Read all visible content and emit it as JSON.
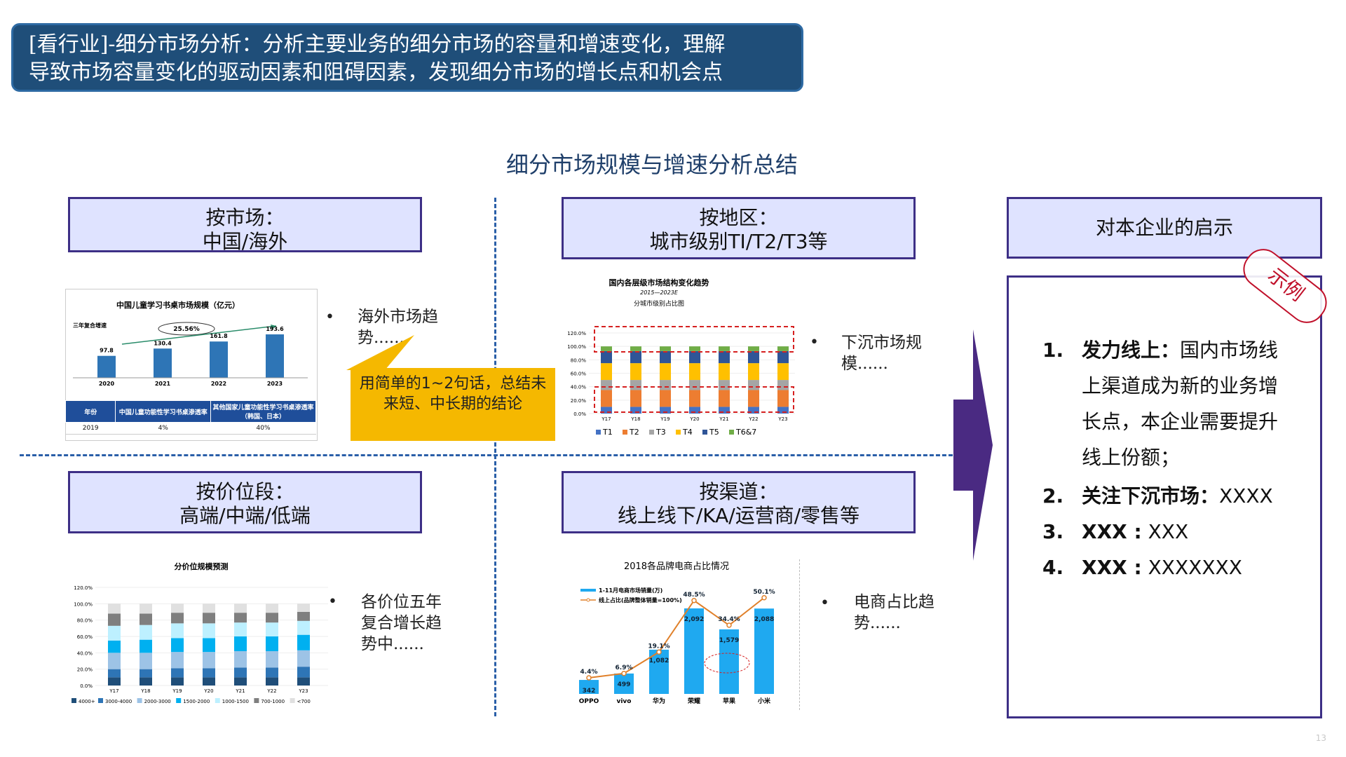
{
  "banner": {
    "line1": "[看行业]-细分市场分析：分析主要业务的细分市场的容量和增速变化，理解",
    "line2": "导致市场容量变化的驱动因素和阻碍因素，发现细分市场的增长点和机会点"
  },
  "main_title": "细分市场规模与增速分析总结",
  "dimensions": {
    "market": {
      "line1": "按市场：",
      "line2": "中国/海外"
    },
    "region": {
      "line1": "按地区：",
      "line2": "城市级别TI/T2/T3等"
    },
    "price": {
      "line1": "按价位段：",
      "line2": "高端/中端/低端"
    },
    "channel": {
      "line1": "按渠道：",
      "line2": "线上线下/KA/运营商/零售等"
    }
  },
  "notes": {
    "market": "海外市场趋势......",
    "region": "下沉市场规模......",
    "price": "各价位五年复合增长趋势中......",
    "channel": "电商占比趋势......",
    "bullet": "•"
  },
  "callout": "用简单的1~2句话，总结未来短、中长期的结论",
  "insights": {
    "header": "对本企业的启示",
    "stamp": "示例",
    "items": [
      {
        "num": "1.",
        "bold": "发力线上：",
        "text": "国内市场线上渠道成为新的业务增长点，本企业需要提升线上份额；"
      },
      {
        "num": "2.",
        "bold": "关注下沉市场：",
        "text": "XXXX"
      },
      {
        "num": "3.",
        "bold": "XXX :",
        "text": " XXX"
      },
      {
        "num": "4.",
        "bold": "XXX :",
        "text": " XXXXXXX"
      }
    ]
  },
  "page_number": "13",
  "chart_data": [
    {
      "type": "bar",
      "title": "中国儿童学习书桌市场规模（亿元）",
      "categories": [
        "2020",
        "2021",
        "2022",
        "2023"
      ],
      "values": [
        97.8,
        130.4,
        161.8,
        193.6
      ],
      "annotation_label": "三年复合增速",
      "annotation_value": "25.56%",
      "table": {
        "headers": [
          "年份",
          "中国儿童功能性学习书桌渗透率",
          "其他国家儿童功能性学习书桌渗透率（韩国、日本）"
        ],
        "rows": [
          [
            "2019",
            "4%",
            "40%"
          ]
        ]
      },
      "color": "#2e75b6"
    },
    {
      "type": "bar",
      "title": "国内各层级市场结构变化趋势",
      "subtitle": "2015—2023E",
      "chart_label": "分城市级别占比图",
      "categories": [
        "Y17",
        "Y18",
        "Y19",
        "Y20",
        "Y21",
        "Y22",
        "Y23"
      ],
      "ylabels": [
        "0.0%",
        "20.0%",
        "40.0%",
        "60.0%",
        "80.0%",
        "100.0%",
        "120.0%"
      ],
      "stacked": true,
      "series": [
        {
          "name": "T1",
          "values": [
            10,
            10,
            10,
            10,
            10,
            10,
            10
          ],
          "color": "#4472c4"
        },
        {
          "name": "T2",
          "values": [
            25,
            25,
            25,
            25,
            25,
            25,
            25
          ],
          "color": "#ed7d31"
        },
        {
          "name": "T3",
          "values": [
            15,
            15,
            15,
            15,
            15,
            15,
            15
          ],
          "color": "#a5a5a5"
        },
        {
          "name": "T4",
          "values": [
            25,
            25,
            25,
            25,
            25,
            25,
            25
          ],
          "color": "#ffc000"
        },
        {
          "name": "T5",
          "values": [
            18,
            18,
            18,
            18,
            18,
            18,
            18
          ],
          "color": "#2f5597"
        },
        {
          "name": "T6&7",
          "values": [
            7,
            7,
            7,
            7,
            7,
            7,
            7
          ],
          "color": "#70ad47"
        }
      ]
    },
    {
      "type": "bar",
      "title": "分价位规模预测",
      "categories": [
        "Y17",
        "Y18",
        "Y19",
        "Y20",
        "Y21",
        "Y22",
        "Y23"
      ],
      "ylabels": [
        "0.0%",
        "20.0%",
        "40.0%",
        "60.0%",
        "80.0%",
        "100.0%",
        "120.0%"
      ],
      "stacked": true,
      "series": [
        {
          "name": "4000+",
          "values": [
            10,
            10,
            10,
            10,
            10,
            10,
            10
          ],
          "color": "#1f4e79"
        },
        {
          "name": "3000-4000",
          "values": [
            10,
            10,
            11,
            11,
            12,
            12,
            13
          ],
          "color": "#2e75b6"
        },
        {
          "name": "2000-3000",
          "values": [
            20,
            20,
            20,
            20,
            20,
            20,
            20
          ],
          "color": "#9dc3e6"
        },
        {
          "name": "1500-2000",
          "values": [
            15,
            16,
            17,
            17,
            18,
            18,
            19
          ],
          "color": "#00b0f0"
        },
        {
          "name": "1000-1500",
          "values": [
            18,
            18,
            18,
            18,
            17,
            17,
            17
          ],
          "color": "#bdf0ff"
        },
        {
          "name": "700-1000",
          "values": [
            15,
            14,
            13,
            13,
            12,
            12,
            11
          ],
          "color": "#7f7f7f"
        },
        {
          "name": "<700",
          "values": [
            12,
            12,
            11,
            11,
            11,
            11,
            10
          ],
          "color": "#e0e0e0"
        }
      ]
    },
    {
      "type": "bar",
      "title": "2018各品牌电商占比情况",
      "categories": [
        "OPPO",
        "vivo",
        "华为",
        "荣耀",
        "苹果",
        "小米"
      ],
      "series": [
        {
          "name": "1-11月电商市场销量(万)",
          "values": [
            342,
            499,
            1082,
            2092,
            1579,
            2088
          ],
          "labels": [
            "342",
            "499",
            "1,082",
            "2,092",
            "1,579",
            "2,088"
          ],
          "color": "#1fa9f0"
        },
        {
          "name": "线上占比(品牌整体销量=100%)",
          "values": [
            4.4,
            6.9,
            19.1,
            48.5,
            34.4,
            50.1
          ],
          "labels": [
            "4.4%",
            "6.9%",
            "19.1%",
            "48.5%",
            "34.4%",
            "50.1%"
          ],
          "color": "#e0802a"
        }
      ]
    }
  ]
}
